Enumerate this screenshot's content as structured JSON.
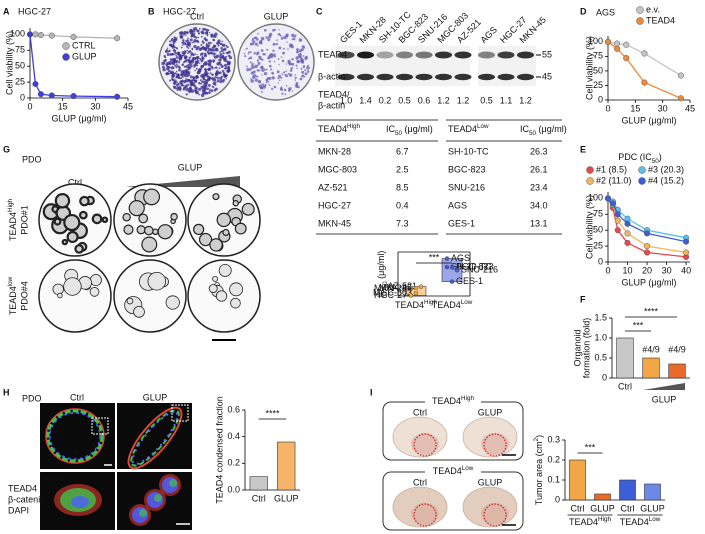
{
  "panel_labels": [
    "A",
    "B",
    "C",
    "D",
    "E",
    "F",
    "G",
    "H",
    "I"
  ],
  "panel_b": {
    "title": "HGC-27",
    "columns": [
      "Ctrl",
      "GLUP"
    ]
  },
  "panel_c": {
    "lanes": [
      "GES-1",
      "MKN-28",
      "SH-10-TC",
      "BGC-823",
      "SNU-216",
      "MGC-803",
      "AZ-521",
      "AGS",
      "HGC-27",
      "MKN-45"
    ],
    "blot_labels": [
      "TEAD4",
      "β-actin"
    ],
    "size_markers": [
      "55",
      "45"
    ],
    "ratio_label": [
      "TEAD4/",
      "β-actin"
    ],
    "ratios": [
      "1.0",
      "1.4",
      "0.2",
      "0.5",
      "0.6",
      "1.2",
      "1.2",
      "0.5",
      "1.1",
      "1.2"
    ],
    "tables": [
      {
        "header": [
          {
            "text": "TEAD4",
            "sup": "High"
          },
          {
            "text": "IC",
            "sub": "50",
            "after": " (μg/ml)"
          }
        ],
        "rows": [
          [
            "MKN-28",
            "6.7"
          ],
          [
            "MGC-803",
            "2.5"
          ],
          [
            "AZ-521",
            "8.5"
          ],
          [
            "HGC-27",
            "0.4"
          ],
          [
            "MKN-45",
            "7.3"
          ]
        ]
      },
      {
        "header": [
          {
            "text": "TEAD4",
            "sup": "Low"
          },
          {
            "text": "IC",
            "sub": "50",
            "after": " (μg/ml)"
          }
        ],
        "rows": [
          [
            "SH-10-TC",
            "26.3"
          ],
          [
            "BGC-823",
            "26.1"
          ],
          [
            "SNU-216",
            "23.4"
          ],
          [
            "AGS",
            "34.0"
          ],
          [
            "GES-1",
            "13.1"
          ]
        ]
      }
    ]
  },
  "panel_g": {
    "title": "PDO",
    "columns": [
      "Ctrl",
      "GLUP"
    ],
    "rows": [
      {
        "label": {
          "text": "TEAD4",
          "sup": "High"
        },
        "sample": "PDO#1"
      },
      {
        "label": {
          "text": "TEAD4",
          "sup": "low"
        },
        "sample": "PDO#4"
      }
    ]
  },
  "panel_h": {
    "title": "PDO",
    "columns": [
      "Ctrl",
      "GLUP"
    ],
    "inset": "Inset",
    "channels": [
      "TEAD4",
      "β-catenin",
      "DAPI"
    ]
  },
  "panel_i": {
    "groups": [
      {
        "title": {
          "text": "TEAD4",
          "sup": "High"
        },
        "columns": [
          "Ctrl",
          "GLUP"
        ]
      },
      {
        "title": {
          "text": "TEAD4",
          "sup": "Low"
        },
        "columns": [
          "Ctrl",
          "GLUP"
        ]
      }
    ]
  },
  "chart_data": [
    {
      "type": "line",
      "title": "HGC-27",
      "xlabel": "GLUP (μg/ml)",
      "ylabel": "Cell viability (%)",
      "x": [
        0,
        2.5,
        5,
        10,
        20,
        40
      ],
      "series": [
        {
          "name": "CTRL",
          "color": "#b5b5b5",
          "values": [
            100,
            100,
            99,
            98,
            96,
            94
          ]
        },
        {
          "name": "GLUP",
          "color": "#3f3fe0",
          "values": [
            100,
            22,
            6,
            4,
            3,
            2
          ]
        }
      ],
      "xlim": [
        0,
        45
      ],
      "xticks": [
        0,
        15,
        30,
        45
      ],
      "ylim": [
        0,
        110
      ],
      "yticks": [
        0,
        25,
        50,
        75,
        100
      ]
    },
    {
      "type": "line",
      "title": "AGS",
      "xlabel": "GLUP (μg/ml)",
      "ylabel": "Cell viability (%)",
      "x": [
        0,
        5,
        10,
        20,
        40
      ],
      "series": [
        {
          "name": "e.v.",
          "color": "#c4c4c4",
          "values": [
            100,
            97,
            95,
            80,
            42
          ]
        },
        {
          "name": "TEAD4",
          "color": "#f0883a",
          "values": [
            100,
            88,
            72,
            30,
            3
          ]
        }
      ],
      "xlim": [
        0,
        45
      ],
      "xticks": [
        0,
        15,
        30,
        45
      ],
      "ylim": [
        0,
        110
      ],
      "yticks": [
        0,
        25,
        50,
        75,
        100
      ]
    },
    {
      "type": "strip",
      "ylabel": {
        "text": "IC",
        "sub": "50",
        "after": " (μg/ml)"
      },
      "groups": [
        {
          "name": {
            "text": "TEAD4",
            "sup": "High"
          },
          "color": "#f2a646",
          "values": [
            6.7,
            2.5,
            8.5,
            0.4,
            7.3
          ],
          "labels": [
            "MKN-28",
            "MGC-803",
            "AZ-521",
            "HGC-27",
            "MKN-45"
          ]
        },
        {
          "name": {
            "text": "TEAD4",
            "sup": "Low"
          },
          "color": "#4a5fd8",
          "values": [
            26.3,
            26.1,
            23.4,
            34.0,
            13.1
          ],
          "labels": [
            "SH-10-TC",
            "BGC-823",
            "SNU-216",
            "AGS",
            "GES-1"
          ]
        }
      ],
      "ylim": [
        0,
        40
      ],
      "annotations": [
        "***"
      ],
      "annotation_colors": [
        "#e02020"
      ]
    },
    {
      "type": "line",
      "legend_title": {
        "text": "PDC (IC",
        "sub": "50",
        "after": ")"
      },
      "xlabel": "GLUP (μg/ml)",
      "ylabel": "Cell viability (%)",
      "x": [
        0,
        2.5,
        5,
        10,
        20,
        40
      ],
      "series": [
        {
          "name": "#1 (8.5)",
          "color": "#e8474c",
          "values": [
            100,
            85,
            50,
            30,
            15,
            8
          ]
        },
        {
          "name": "#2 (11.0)",
          "color": "#f2b45c",
          "values": [
            100,
            90,
            65,
            45,
            25,
            15
          ]
        },
        {
          "name": "#3 (20.3)",
          "color": "#5cc0ee",
          "values": [
            100,
            95,
            82,
            68,
            50,
            38
          ]
        },
        {
          "name": "#4 (15.2)",
          "color": "#3d5fd6",
          "values": [
            100,
            92,
            75,
            60,
            45,
            32
          ]
        }
      ],
      "xlim": [
        0,
        42
      ],
      "xticks": [
        0,
        10,
        20,
        30,
        40
      ],
      "ylim": [
        0,
        110
      ],
      "yticks": [
        0,
        25,
        50,
        75,
        100
      ]
    },
    {
      "type": "bar",
      "ylabel": [
        "Organoid",
        "formation (fold)"
      ],
      "categories": [
        "Ctrl",
        null,
        null
      ],
      "group_label": "GLUP",
      "values": [
        1.0,
        0.5,
        0.35
      ],
      "colors": [
        "#c8c8c8",
        "#f2a646",
        "#ea6a2c"
      ],
      "ylim": [
        0,
        1.5
      ],
      "yticks": [
        0,
        0.5,
        {
          "value": 1,
          "label": "1.0"
        },
        1.5
      ],
      "annotations": [
        "***",
        "****",
        "#4/9",
        "#4/9"
      ],
      "annotation_colors": [
        "#e02020",
        "#e02020",
        "#3aa8e0",
        "#3aa8e0"
      ]
    },
    {
      "type": "bar",
      "ylabel": "TEAD4 condensed fraction",
      "categories": [
        "Ctrl",
        "GLUP"
      ],
      "values": [
        0.1,
        0.36
      ],
      "colors": [
        "#c8c8c8",
        "#f5b46a"
      ],
      "ylim": [
        0,
        0.6
      ],
      "yticks": [
        {
          "value": 0,
          "label": "0.0"
        },
        0.2,
        0.4,
        0.6
      ],
      "annotations": [
        "****"
      ],
      "annotation_colors": [
        "#e02020"
      ]
    },
    {
      "type": "bar",
      "ylabel": {
        "text": "Tumor area (cm",
        "sup": "2",
        "after": ")"
      },
      "categories": [
        "Ctrl",
        "GLUP",
        "Ctrl",
        "GLUP"
      ],
      "group_labels": [
        {
          "text": "TEAD4",
          "sup": "High"
        },
        {
          "text": "TEAD4",
          "sup": "Low"
        }
      ],
      "values": [
        0.2,
        0.03,
        0.1,
        0.08
      ],
      "colors": [
        "#f2a646",
        "#ea6a2c",
        "#3d5fd6",
        "#6a8ae6"
      ],
      "ylim": [
        0,
        0.3
      ],
      "yticks": [
        0,
        0.1,
        0.2,
        0.3
      ],
      "annotations": [
        "***"
      ],
      "annotation_colors": [
        "#e02020"
      ]
    }
  ]
}
